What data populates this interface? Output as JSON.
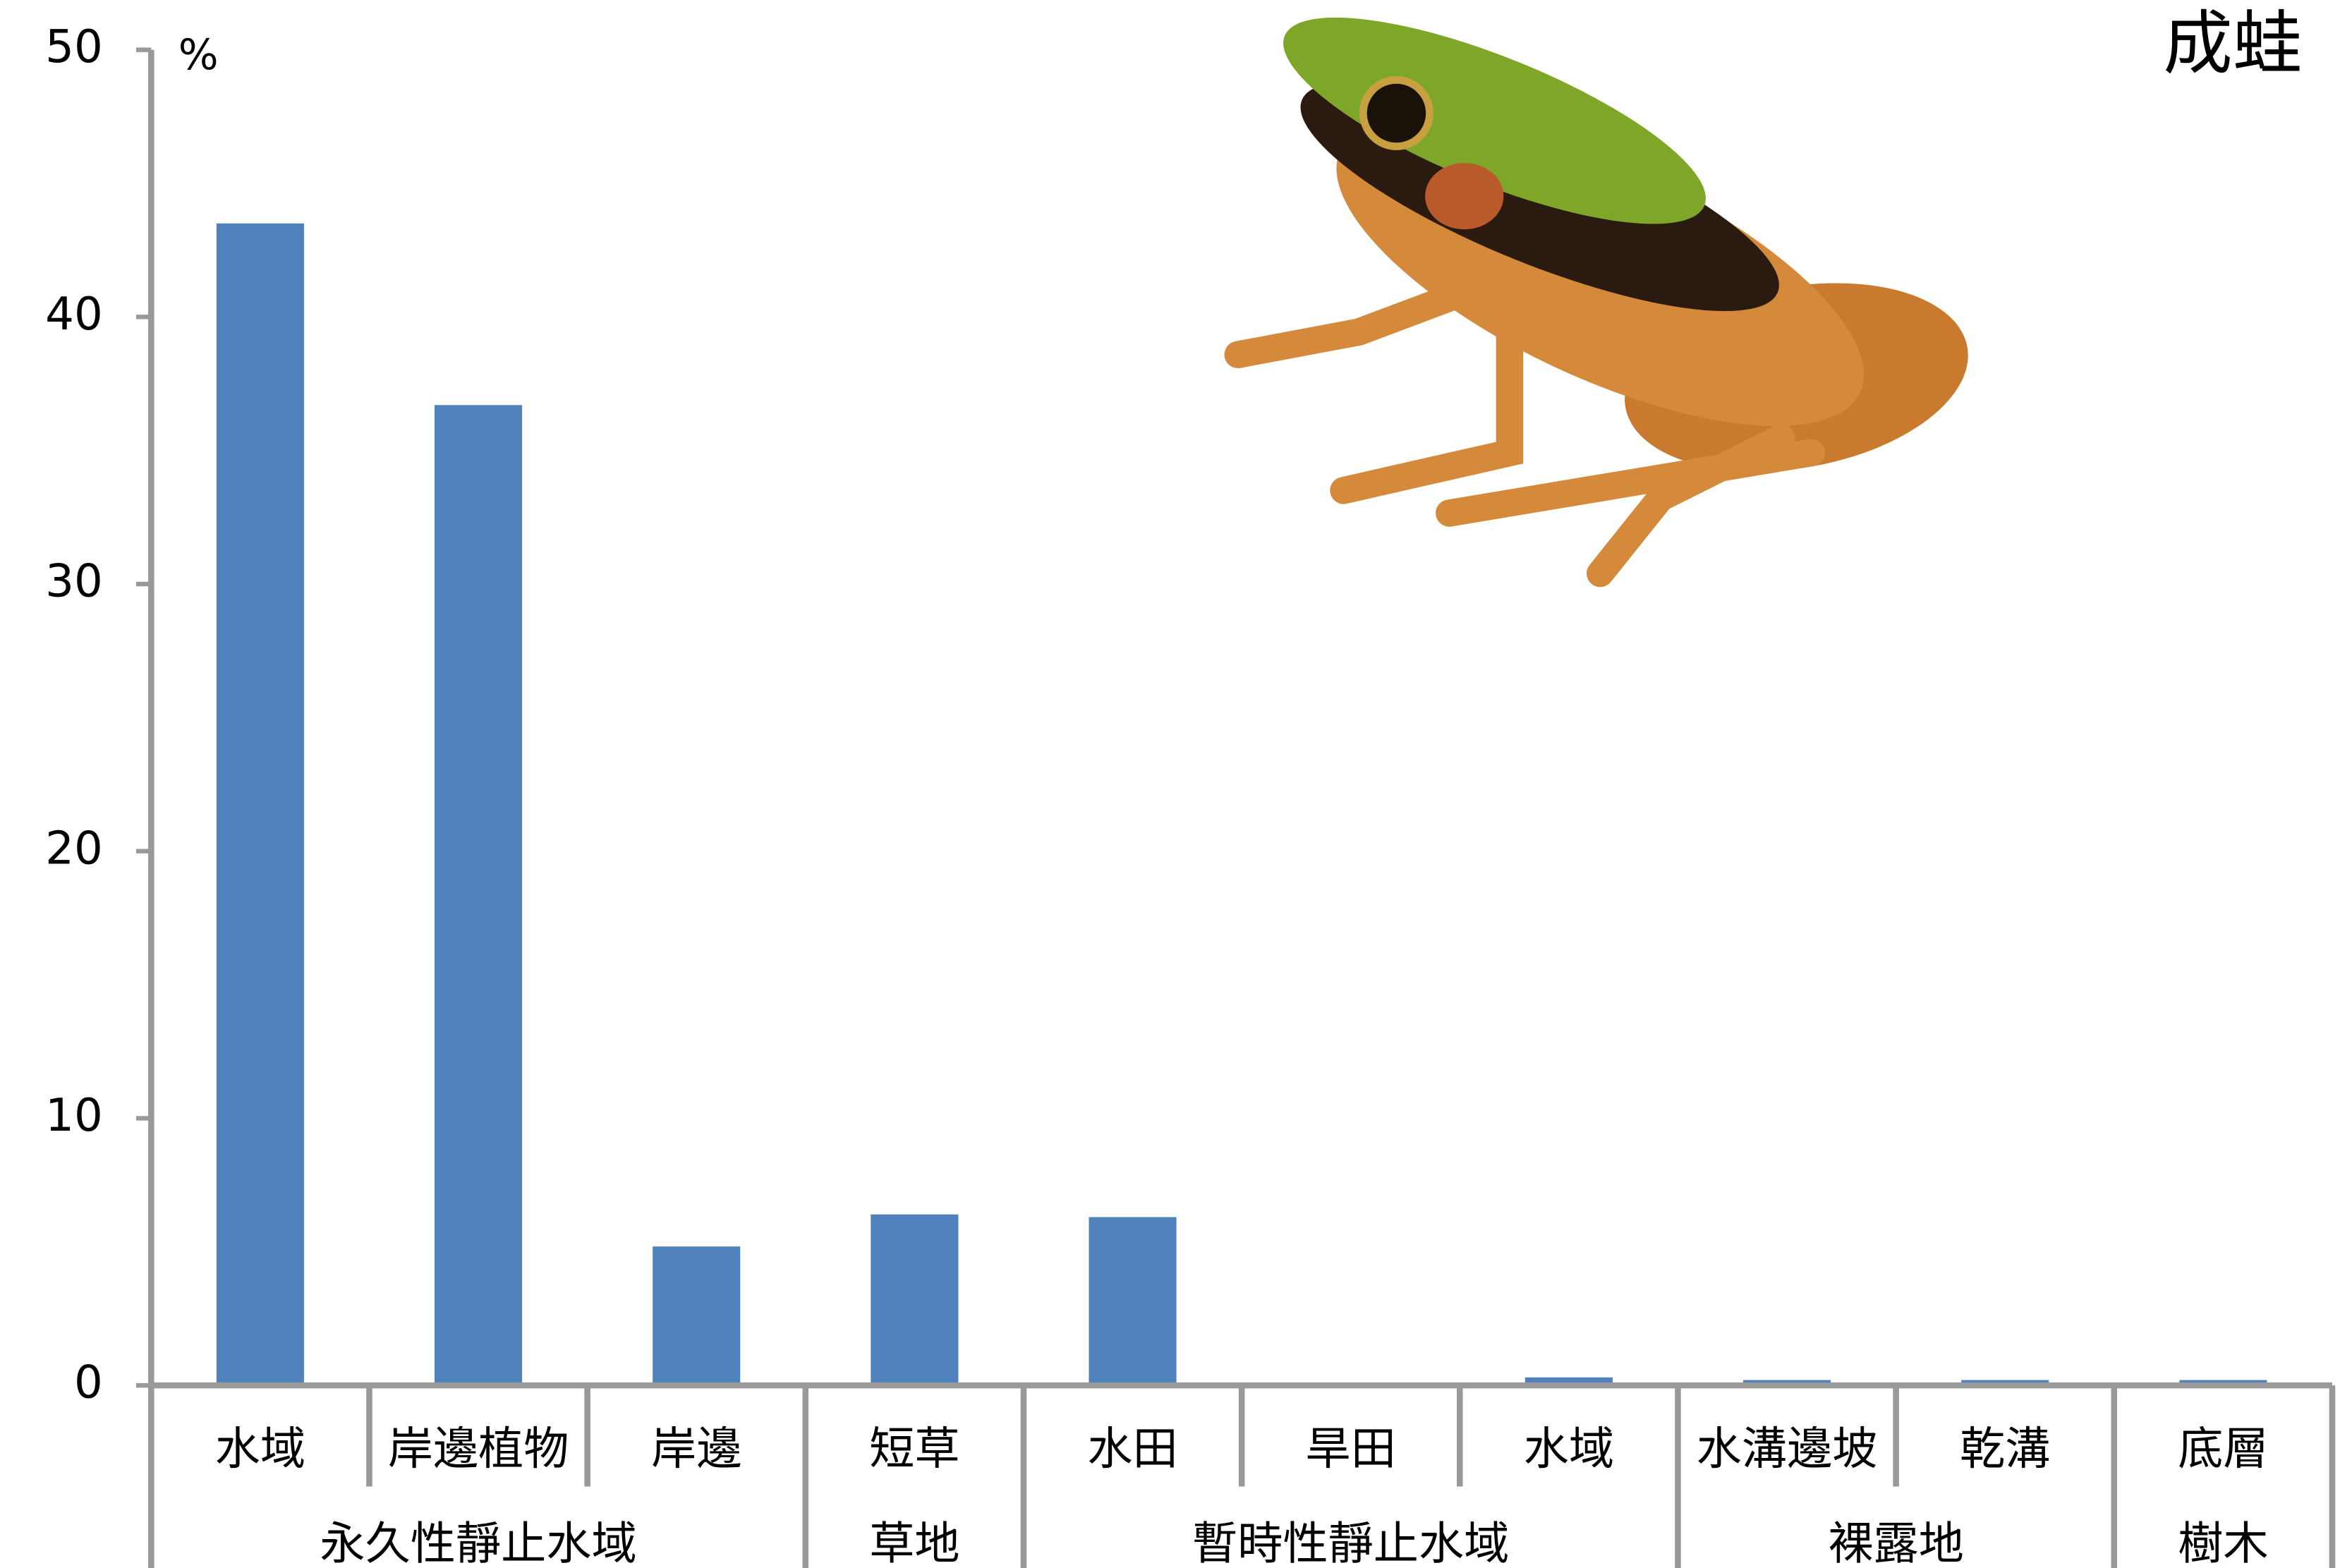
{
  "chart_data": {
    "type": "bar",
    "title": "成蛙",
    "y_unit": "%",
    "categories": [
      "水域",
      "岸邊植物",
      "岸邊",
      "短草",
      "水田",
      "旱田",
      "水域",
      "水溝邊坡",
      "乾溝",
      "底層"
    ],
    "values": [
      43.5,
      36.7,
      5.2,
      6.4,
      6.3,
      0,
      0.3,
      0.2,
      0.2,
      0.2
    ],
    "groups": [
      {
        "label": "永久性靜止水域",
        "count": 3
      },
      {
        "label": "草地",
        "count": 1
      },
      {
        "label": "暫時性靜止水域",
        "count": 3
      },
      {
        "label": "裸露地",
        "count": 2
      },
      {
        "label": "樹木",
        "count": 1
      }
    ],
    "color": "#4f81bd",
    "ylim": [
      0,
      50
    ],
    "yticks": [
      0,
      10,
      20,
      30,
      40,
      50
    ],
    "grid": false
  }
}
